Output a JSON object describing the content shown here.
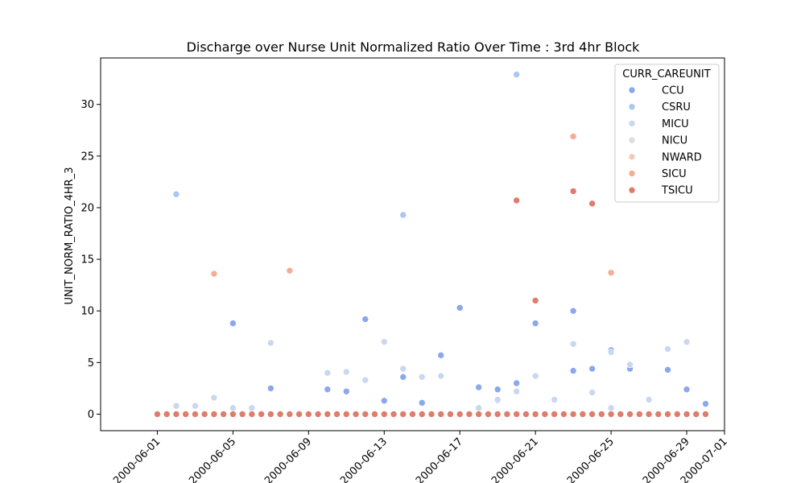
{
  "chart_data": {
    "type": "scatter",
    "title": "Discharge over Nurse Unit Normalized Ratio Over Time : 3rd 4hr Block",
    "xlabel": "",
    "ylabel": "UNIT_NORM_RATIO_4HR_3",
    "xlim": [
      "2000-05-29",
      "2000-07-01"
    ],
    "ylim": [
      -1.6,
      34.5
    ],
    "x_ticks": [
      "2000-06-01",
      "2000-06-05",
      "2000-06-09",
      "2000-06-13",
      "2000-06-17",
      "2000-06-21",
      "2000-06-25",
      "2000-06-29",
      "2000-07-01"
    ],
    "y_ticks": [
      0,
      5,
      10,
      15,
      20,
      25,
      30
    ],
    "grid": false,
    "legend": {
      "title": "CURR_CAREUNIT",
      "placement": "top-right"
    },
    "series": [
      {
        "name": "CCU",
        "color": "#8ba7ed",
        "points": [
          [
            "2000-06-05",
            8.8
          ],
          [
            "2000-06-07",
            2.5
          ],
          [
            "2000-06-10",
            2.4
          ],
          [
            "2000-06-11",
            2.2
          ],
          [
            "2000-06-12",
            9.2
          ],
          [
            "2000-06-13",
            1.3
          ],
          [
            "2000-06-14",
            3.6
          ],
          [
            "2000-06-15",
            1.1
          ],
          [
            "2000-06-16",
            5.7
          ],
          [
            "2000-06-17",
            10.3
          ],
          [
            "2000-06-18",
            2.6
          ],
          [
            "2000-06-19",
            2.4
          ],
          [
            "2000-06-20",
            3.0
          ],
          [
            "2000-06-21",
            8.8
          ],
          [
            "2000-06-23",
            4.2
          ],
          [
            "2000-06-23",
            10.0
          ],
          [
            "2000-06-24",
            4.4
          ],
          [
            "2000-06-25",
            6.2
          ],
          [
            "2000-06-26",
            4.4
          ],
          [
            "2000-06-28",
            4.3
          ],
          [
            "2000-06-29",
            2.4
          ],
          [
            "2000-06-30",
            1.0
          ]
        ]
      },
      {
        "name": "CSRU",
        "color": "#acc5f8",
        "points": [
          [
            "2000-06-02",
            21.3
          ],
          [
            "2000-06-14",
            19.3
          ],
          [
            "2000-06-20",
            32.9
          ]
        ]
      },
      {
        "name": "MICU",
        "color": "#c9d8f0",
        "points": [
          [
            "2000-06-02",
            0.8
          ],
          [
            "2000-06-02",
            0.8
          ],
          [
            "2000-06-03",
            0.8
          ],
          [
            "2000-06-04",
            1.6
          ],
          [
            "2000-06-05",
            0.6
          ],
          [
            "2000-06-06",
            0.6
          ],
          [
            "2000-06-07",
            6.9
          ],
          [
            "2000-06-10",
            4.0
          ],
          [
            "2000-06-11",
            4.1
          ],
          [
            "2000-06-12",
            3.3
          ],
          [
            "2000-06-13",
            7.0
          ],
          [
            "2000-06-14",
            4.4
          ],
          [
            "2000-06-15",
            3.6
          ],
          [
            "2000-06-16",
            3.7
          ],
          [
            "2000-06-18",
            0.6
          ],
          [
            "2000-06-19",
            1.3
          ],
          [
            "2000-06-19",
            1.4
          ],
          [
            "2000-06-20",
            2.2
          ],
          [
            "2000-06-21",
            3.7
          ],
          [
            "2000-06-22",
            1.4
          ],
          [
            "2000-06-23",
            6.8
          ],
          [
            "2000-06-24",
            2.1
          ],
          [
            "2000-06-25",
            0.6
          ],
          [
            "2000-06-25",
            6.0
          ],
          [
            "2000-06-26",
            4.8
          ],
          [
            "2000-06-27",
            1.4
          ],
          [
            "2000-06-28",
            6.3
          ],
          [
            "2000-06-29",
            7.0
          ]
        ]
      },
      {
        "name": "NICU",
        "color": "#e0dcda",
        "points": [
          [
            "2000-06-04",
            0.0
          ],
          [
            "2000-06-08",
            0.0
          ],
          [
            "2000-06-21",
            0.0
          ],
          [
            "2000-06-24",
            0.0
          ]
        ]
      },
      {
        "name": "NWARD",
        "color": "#f1cbb6",
        "points": [
          [
            "2000-06-20",
            0.0
          ]
        ]
      },
      {
        "name": "SICU",
        "color": "#f2ad95",
        "points": [
          [
            "2000-06-04",
            13.6
          ],
          [
            "2000-06-08",
            13.9
          ],
          [
            "2000-06-23",
            26.9
          ],
          [
            "2000-06-25",
            13.7
          ]
        ]
      },
      {
        "name": "TSICU",
        "color": "#de7d6c",
        "points": [
          [
            "2000-06-20",
            20.7
          ],
          [
            "2000-06-21",
            11.0
          ],
          [
            "2000-06-23",
            21.6
          ],
          [
            "2000-06-24",
            20.4
          ]
        ]
      }
    ],
    "baseline": {
      "series": "TSICU",
      "y": 0,
      "x_start": "2000-06-01",
      "x_end": "2000-06-30",
      "step_days": 0.5
    }
  }
}
